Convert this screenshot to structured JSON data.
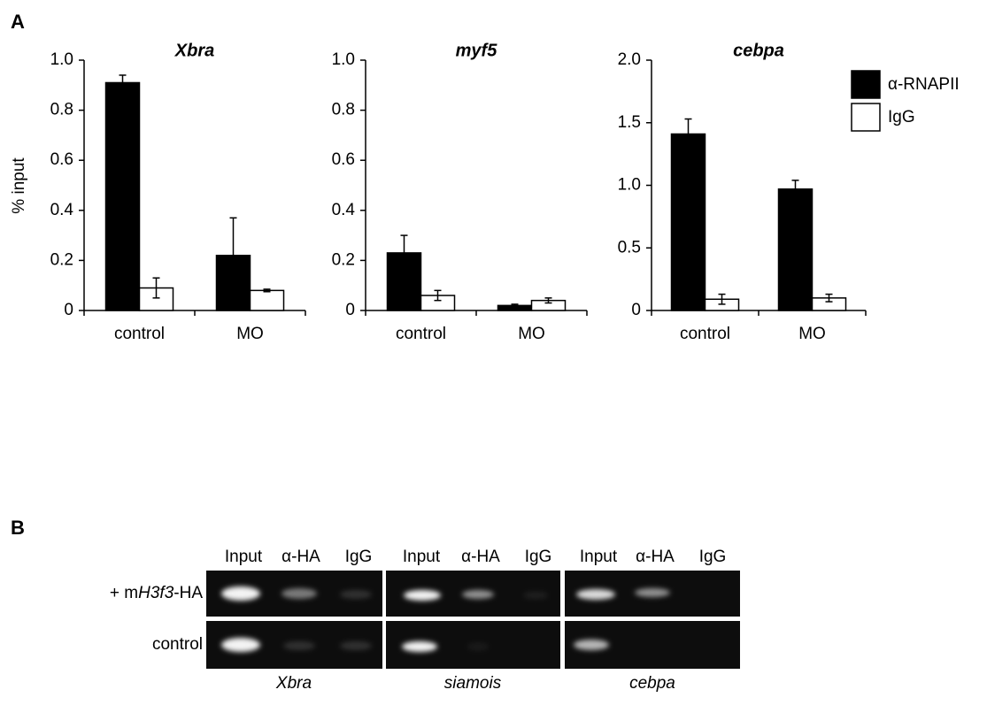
{
  "panel_labels": [
    "A",
    "B"
  ],
  "chart_data": [
    {
      "type": "bar",
      "title": "Xbra",
      "ylabel": "% input",
      "categories": [
        "control",
        "MO"
      ],
      "series": [
        {
          "color": "#000000",
          "values": [
            0.91,
            0.22
          ],
          "errors": [
            0.03,
            0.15
          ]
        },
        {
          "color": "#ffffff",
          "values": [
            0.09,
            0.08
          ],
          "errors": [
            0.04,
            0.005
          ]
        }
      ],
      "ylim": [
        0,
        1
      ],
      "yticks": [
        0,
        0.2,
        0.4,
        0.6,
        0.8,
        {
          "value": 1,
          "label": "1.0"
        }
      ]
    },
    {
      "type": "bar",
      "title": "myf5",
      "categories": [
        "control",
        "MO"
      ],
      "series": [
        {
          "color": "#000000",
          "values": [
            0.23,
            0.02
          ],
          "errors": [
            0.07,
            0.005
          ]
        },
        {
          "color": "#ffffff",
          "values": [
            0.06,
            0.04
          ],
          "errors": [
            0.02,
            0.01
          ]
        }
      ],
      "ylim": [
        0,
        1
      ],
      "yticks": [
        0,
        0.2,
        0.4,
        0.6,
        0.8,
        {
          "value": 1,
          "label": "1.0"
        }
      ]
    },
    {
      "type": "bar",
      "title": "cebpa",
      "categories": [
        "control",
        "MO"
      ],
      "series": [
        {
          "name": "α-RNAPII",
          "color": "#000000",
          "values": [
            1.41,
            0.97
          ],
          "errors": [
            0.12,
            0.07
          ]
        },
        {
          "name": "IgG",
          "color": "#ffffff",
          "values": [
            0.09,
            0.1
          ],
          "errors": [
            0.04,
            0.03
          ]
        }
      ],
      "ylim": [
        0,
        2
      ],
      "yticks": [
        0,
        0.5,
        {
          "value": 1,
          "label": "1.0"
        },
        1.5,
        {
          "value": 2,
          "label": "2.0"
        }
      ],
      "legend": "right"
    }
  ],
  "panel_b": {
    "gels": [
      {
        "gene": "Xbra",
        "lanes": [
          "Input",
          "α-HA",
          "IgG"
        ]
      },
      {
        "gene": "siamois",
        "lanes": [
          "Input",
          "α-HA",
          "IgG"
        ]
      },
      {
        "gene": "cebpa",
        "lanes": [
          "Input",
          "α-HA",
          "IgG"
        ]
      }
    ],
    "rows": [
      [
        "+ m",
        "H3f3",
        "-HA"
      ],
      [
        "control"
      ]
    ]
  }
}
